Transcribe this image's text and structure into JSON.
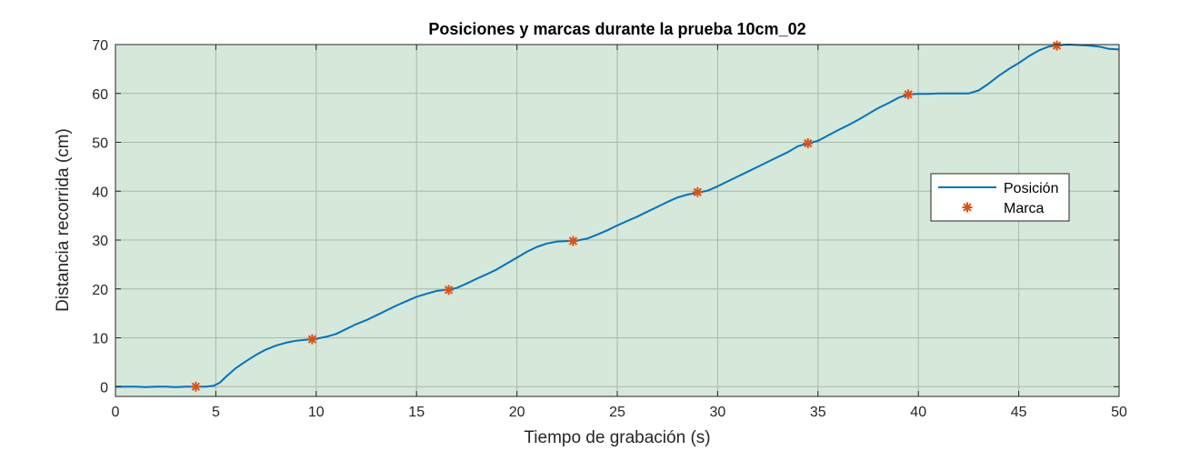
{
  "chart_data": {
    "type": "line",
    "title": "Posiciones y marcas durante la prueba 10cm_02",
    "xlabel": "Tiempo de grabación (s)",
    "ylabel": "Distancia recorrida (cm)",
    "xlim": [
      0,
      50
    ],
    "ylim": [
      -2,
      70
    ],
    "xticks": [
      0,
      5,
      10,
      15,
      20,
      25,
      30,
      35,
      40,
      45,
      50
    ],
    "yticks": [
      0,
      10,
      20,
      30,
      40,
      50,
      60,
      70
    ],
    "grid": true,
    "legend_position": "right",
    "colors": {
      "plot_background": "#d6e8da",
      "line": "#0072bd",
      "marker": "#d95319",
      "grid": "#a9b8ac",
      "axis": "#262626"
    },
    "series": [
      {
        "name": "Posición",
        "style": "line",
        "x": [
          0,
          1,
          1.5,
          2,
          2.5,
          3,
          3.5,
          4,
          4.5,
          4.9,
          5.2,
          5.5,
          6,
          6.5,
          7,
          7.5,
          8,
          8.5,
          9,
          9.5,
          10,
          10.5,
          11,
          11.5,
          12,
          12.5,
          13,
          13.5,
          14,
          14.5,
          15,
          15.5,
          16,
          16.5,
          17,
          17.5,
          18,
          18.5,
          19,
          19.5,
          20,
          20.5,
          21,
          21.5,
          22,
          22.5,
          23,
          23.5,
          24,
          24.5,
          25,
          25.5,
          26,
          26.5,
          27,
          27.5,
          28,
          28.5,
          29,
          29.5,
          30,
          30.5,
          31,
          31.5,
          32,
          32.5,
          33,
          33.5,
          34,
          34.5,
          35,
          35.5,
          36,
          36.5,
          37,
          37.5,
          38,
          38.5,
          39,
          39.5,
          40,
          40.5,
          41,
          41.5,
          42,
          42.5,
          43,
          43.5,
          44,
          44.5,
          45,
          45.5,
          46,
          46.5,
          47,
          47.5,
          48,
          48.5,
          49,
          49.5,
          50
        ],
        "y": [
          0,
          0,
          -0.1,
          0,
          0,
          -0.1,
          0,
          0,
          0,
          0.2,
          0.8,
          2,
          3.8,
          5.2,
          6.5,
          7.6,
          8.4,
          9,
          9.4,
          9.6,
          9.8,
          10.2,
          10.8,
          11.8,
          12.8,
          13.6,
          14.6,
          15.6,
          16.6,
          17.5,
          18.4,
          19,
          19.6,
          19.8,
          20.2,
          21.1,
          22.1,
          23,
          24,
          25.2,
          26.4,
          27.6,
          28.6,
          29.3,
          29.7,
          29.8,
          29.9,
          30.3,
          31.1,
          32,
          33,
          33.9,
          34.8,
          35.8,
          36.8,
          37.8,
          38.7,
          39.3,
          39.7,
          40.1,
          41,
          42,
          43,
          44,
          45,
          46,
          47,
          48,
          49.2,
          49.8,
          50.3,
          51.4,
          52.5,
          53.5,
          54.6,
          55.8,
          57,
          58,
          59.1,
          59.8,
          59.9,
          59.9,
          60,
          60,
          60,
          60,
          60.6,
          62,
          63.6,
          65,
          66.2,
          67.6,
          68.8,
          69.6,
          69.9,
          70,
          69.9,
          69.8,
          69.6,
          69.1,
          69.0
        ]
      },
      {
        "name": "Marca",
        "style": "marker",
        "x": [
          4,
          9.8,
          16.6,
          22.8,
          29,
          34.5,
          39.5,
          46.9
        ],
        "y": [
          0,
          9.7,
          19.8,
          29.8,
          39.8,
          49.8,
          59.8,
          69.8
        ]
      }
    ]
  }
}
